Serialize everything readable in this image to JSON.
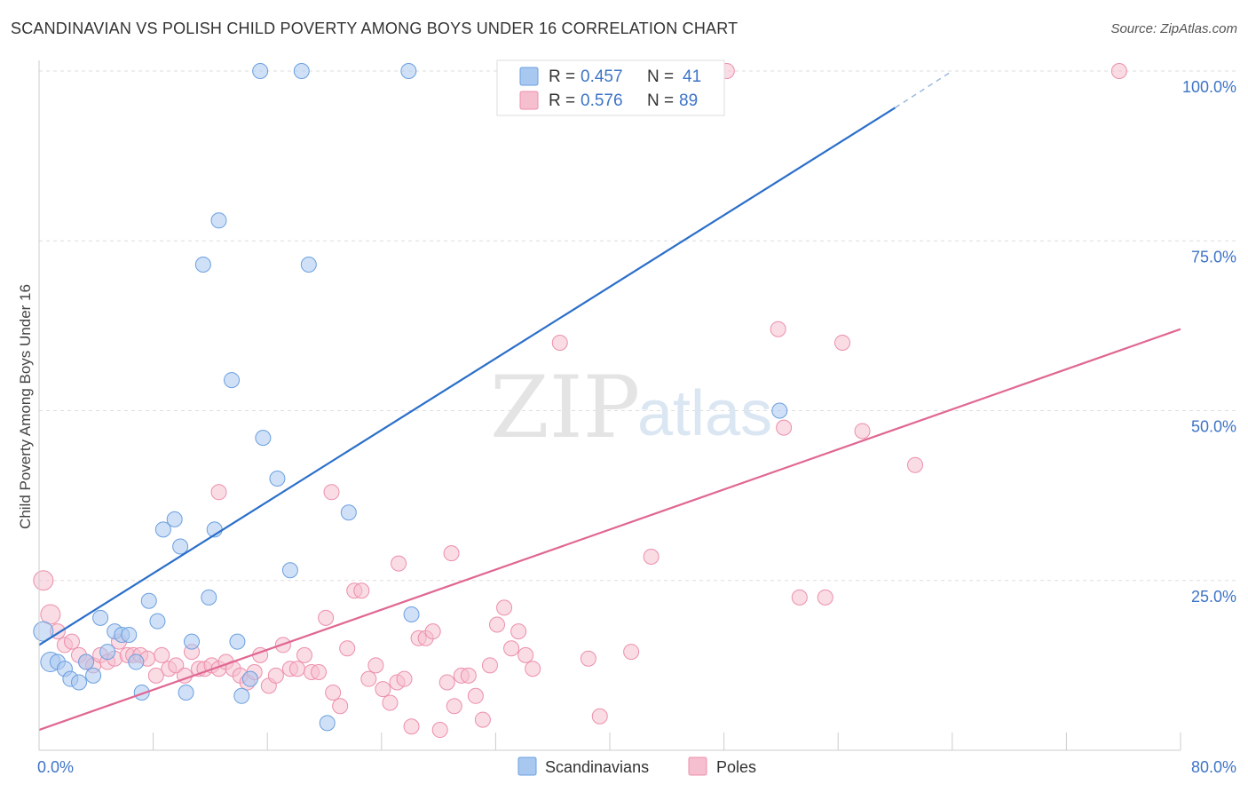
{
  "title": "SCANDINAVIAN VS POLISH CHILD POVERTY AMONG BOYS UNDER 16 CORRELATION CHART",
  "source": "Source: ZipAtlas.com",
  "watermark": {
    "zip": "ZIP",
    "atlas": "atlas"
  },
  "colors": {
    "blue_fill": "#a9c8f0",
    "blue_stroke": "#6a9fe0",
    "blue_line": "#2b6fca",
    "pink_fill": "#f6bfd0",
    "pink_stroke": "#ec8fab",
    "pink_line": "#e06792",
    "tick_label": "#3d74c6",
    "grid": "#dddddd"
  },
  "chart_data": {
    "type": "scatter",
    "title": "SCANDINAVIAN VS POLISH CHILD POVERTY AMONG BOYS UNDER 16 CORRELATION CHART",
    "xlabel": "",
    "ylabel": "Child Poverty Among Boys Under 16",
    "xlim": [
      0,
      80
    ],
    "ylim": [
      0,
      100
    ],
    "x_tick_labels": [
      {
        "value": 0,
        "label": "0.0%"
      },
      {
        "value": 80,
        "label": "80.0%"
      }
    ],
    "y_tick_labels": [
      {
        "value": 25,
        "label": "25.0%"
      },
      {
        "value": 50,
        "label": "50.0%"
      },
      {
        "value": 75,
        "label": "75.0%"
      },
      {
        "value": 100,
        "label": "100.0%"
      }
    ],
    "grid": true,
    "legend_position": "top-center",
    "series": [
      {
        "name": "Scandinavians",
        "r_label": "R =",
        "r_value": "0.457",
        "n_label": "N =",
        "n_value": "41",
        "trend": {
          "x": [
            0,
            60
          ],
          "y": [
            15.5,
            94.6
          ],
          "dashed_to": [
            64,
            100
          ]
        },
        "points": [
          [
            0.3,
            17.5
          ],
          [
            0.8,
            13
          ],
          [
            1.3,
            13
          ],
          [
            1.8,
            12
          ],
          [
            2.2,
            10.5
          ],
          [
            2.8,
            10
          ],
          [
            3.3,
            13
          ],
          [
            3.8,
            11
          ],
          [
            4.3,
            19.5
          ],
          [
            4.8,
            14.5
          ],
          [
            5.3,
            17.5
          ],
          [
            5.8,
            17
          ],
          [
            6.3,
            17
          ],
          [
            6.8,
            13
          ],
          [
            7.2,
            8.5
          ],
          [
            7.7,
            22
          ],
          [
            8.3,
            19
          ],
          [
            8.7,
            32.5
          ],
          [
            9.5,
            34
          ],
          [
            9.9,
            30
          ],
          [
            10.3,
            8.5
          ],
          [
            10.7,
            16
          ],
          [
            11.5,
            71.5
          ],
          [
            11.9,
            22.5
          ],
          [
            12.3,
            32.5
          ],
          [
            12.6,
            78
          ],
          [
            13.5,
            54.5
          ],
          [
            13.9,
            16
          ],
          [
            14.2,
            8
          ],
          [
            14.8,
            10.5
          ],
          [
            15.5,
            100
          ],
          [
            15.7,
            46
          ],
          [
            16.7,
            40
          ],
          [
            17.6,
            26.5
          ],
          [
            18.4,
            100
          ],
          [
            18.9,
            71.5
          ],
          [
            20.2,
            4
          ],
          [
            21.7,
            35
          ],
          [
            25.9,
            100
          ],
          [
            26.1,
            20
          ],
          [
            51.9,
            50
          ]
        ]
      },
      {
        "name": "Poles",
        "r_label": "R =",
        "r_value": "0.576",
        "n_label": "N =",
        "n_value": "89",
        "trend": {
          "x": [
            0,
            80
          ],
          "y": [
            3,
            62
          ]
        },
        "points": [
          [
            0.3,
            25
          ],
          [
            0.8,
            20
          ],
          [
            1.3,
            17.5
          ],
          [
            1.8,
            15.5
          ],
          [
            2.3,
            16
          ],
          [
            2.8,
            14
          ],
          [
            3.3,
            13
          ],
          [
            3.8,
            12.5
          ],
          [
            4.3,
            14
          ],
          [
            4.8,
            13
          ],
          [
            5.3,
            13.5
          ],
          [
            5.6,
            16
          ],
          [
            6.2,
            14
          ],
          [
            6.6,
            14
          ],
          [
            7.1,
            14
          ],
          [
            7.6,
            13.5
          ],
          [
            8.2,
            11
          ],
          [
            8.6,
            14
          ],
          [
            9.1,
            12
          ],
          [
            9.6,
            12.5
          ],
          [
            10.2,
            11
          ],
          [
            10.7,
            14.5
          ],
          [
            11.2,
            12
          ],
          [
            11.6,
            12
          ],
          [
            12.1,
            12.5
          ],
          [
            12.6,
            12
          ],
          [
            13.1,
            13
          ],
          [
            13.6,
            12
          ],
          [
            14.1,
            11
          ],
          [
            14.6,
            10
          ],
          [
            15.1,
            11.5
          ],
          [
            15.5,
            14
          ],
          [
            16.1,
            9.5
          ],
          [
            16.6,
            11
          ],
          [
            17.1,
            15.5
          ],
          [
            17.6,
            12
          ],
          [
            18.1,
            12
          ],
          [
            18.6,
            14
          ],
          [
            19.1,
            11.5
          ],
          [
            19.6,
            11.5
          ],
          [
            20.1,
            19.5
          ],
          [
            20.6,
            8.5
          ],
          [
            21.1,
            6.5
          ],
          [
            21.6,
            15
          ],
          [
            22.1,
            23.5
          ],
          [
            22.6,
            23.5
          ],
          [
            23.1,
            10.5
          ],
          [
            23.6,
            12.5
          ],
          [
            24.1,
            9
          ],
          [
            24.6,
            7
          ],
          [
            25.1,
            10
          ],
          [
            25.6,
            10.5
          ],
          [
            26.1,
            3.5
          ],
          [
            26.6,
            16.5
          ],
          [
            27.1,
            16.5
          ],
          [
            27.6,
            17.5
          ],
          [
            28.1,
            3
          ],
          [
            28.6,
            10
          ],
          [
            29.1,
            6.5
          ],
          [
            29.6,
            11
          ],
          [
            30.1,
            11
          ],
          [
            30.6,
            8
          ],
          [
            31.1,
            4.5
          ],
          [
            31.6,
            12.5
          ],
          [
            32.1,
            18.5
          ],
          [
            32.6,
            21
          ],
          [
            33.1,
            15
          ],
          [
            33.6,
            17.5
          ],
          [
            34.1,
            14
          ],
          [
            34.6,
            12
          ],
          [
            36.5,
            60
          ],
          [
            38.5,
            13.5
          ],
          [
            39.3,
            5
          ],
          [
            41.5,
            14.5
          ],
          [
            42.9,
            28.5
          ],
          [
            47,
            100
          ],
          [
            48.2,
            100
          ],
          [
            51.8,
            62
          ],
          [
            52.2,
            47.5
          ],
          [
            53.3,
            22.5
          ],
          [
            55.1,
            22.5
          ],
          [
            56.3,
            60
          ],
          [
            57.7,
            47
          ],
          [
            61.4,
            42
          ],
          [
            75.7,
            100
          ],
          [
            12.6,
            38
          ],
          [
            20.5,
            38
          ],
          [
            25.2,
            27.5
          ],
          [
            28.9,
            29
          ]
        ]
      }
    ]
  }
}
